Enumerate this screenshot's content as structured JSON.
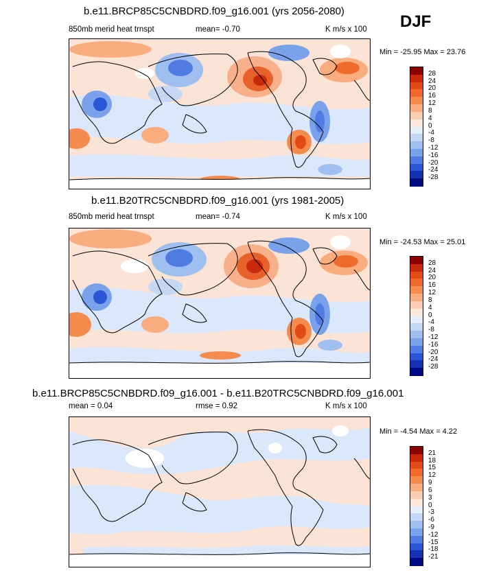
{
  "season": "DJF",
  "panels": [
    {
      "title": "b.e11.BRCP85C5CNBDRD.f09_g16.001 (yrs 2056-2080)",
      "left_label": "850mb merid heat trnspt",
      "center_label": "mean=  -0.70",
      "right_label": "K m/s x 100",
      "minmax": "Min = -25.95 Max =  23.76"
    },
    {
      "title": "b.e11.B20TRC5CNBDRD.f09_g16.001 (yrs 1981-2005)",
      "left_label": "850mb merid heat trnspt",
      "center_label": "mean=  -0.74",
      "right_label": "K m/s x 100",
      "minmax": "Min = -24.53 Max =  25.01"
    },
    {
      "title": "b.e11.BRCP85C5CNBDRD.f09_g16.001 - b.e11.B20TRC5CNBDRD.f09_g16.001",
      "left_label": "mean =   0.04",
      "center_label": "rmse =   0.92",
      "right_label": "K m/s x 100",
      "minmax": "Min =  -4.54 Max =   4.22"
    }
  ],
  "colorbar_abs": {
    "labels": [
      "28",
      "24",
      "20",
      "16",
      "12",
      "8",
      "4",
      "0",
      "-4",
      "-8",
      "-12",
      "-16",
      "-20",
      "-24",
      "-28"
    ],
    "colors": [
      "#8b0000",
      "#c8290a",
      "#e24a16",
      "#f06a2c",
      "#f58c4d",
      "#f9ad7e",
      "#fbcdb0",
      "#fbe7d9",
      "#e4eefb",
      "#c4d8f6",
      "#9ebff0",
      "#7aa2ea",
      "#4f7be3",
      "#2a55d6",
      "#1530b0",
      "#000a80"
    ]
  },
  "colorbar_diff": {
    "labels": [
      "21",
      "18",
      "15",
      "12",
      "9",
      "6",
      "3",
      "0",
      "-3",
      "-6",
      "-9",
      "-12",
      "-15",
      "-18",
      "-21"
    ],
    "colors": [
      "#8b0000",
      "#c8290a",
      "#e24a16",
      "#f06a2c",
      "#f58c4d",
      "#f9ad7e",
      "#fbcdb0",
      "#fbe7d9",
      "#e4eefb",
      "#c4d8f6",
      "#9ebff0",
      "#7aa2ea",
      "#4f7be3",
      "#2a55d6",
      "#1530b0",
      "#000a80"
    ]
  },
  "chart_data": [
    {
      "type": "heatmap",
      "title": "b.e11.BRCP85C5CNBDRD.f09_g16.001 (yrs 2056-2080)",
      "variable": "850mb merid heat trnspt",
      "units": "K m/s x 100",
      "mean": -0.7,
      "min": -25.95,
      "max": 23.76,
      "contour_levels": [
        -28,
        -24,
        -20,
        -16,
        -12,
        -8,
        -4,
        0,
        4,
        8,
        12,
        16,
        20,
        24,
        28
      ]
    },
    {
      "type": "heatmap",
      "title": "b.e11.B20TRC5CNBDRD.f09_g16.001 (yrs 1981-2005)",
      "variable": "850mb merid heat trnspt",
      "units": "K m/s x 100",
      "mean": -0.74,
      "min": -24.53,
      "max": 25.01,
      "contour_levels": [
        -28,
        -24,
        -20,
        -16,
        -12,
        -8,
        -4,
        0,
        4,
        8,
        12,
        16,
        20,
        24,
        28
      ]
    },
    {
      "type": "heatmap",
      "title": "b.e11.BRCP85C5CNBDRD.f09_g16.001 - b.e11.B20TRC5CNBDRD.f09_g16.001",
      "units": "K m/s x 100",
      "mean": 0.04,
      "rmse": 0.92,
      "min": -4.54,
      "max": 4.22,
      "contour_levels": [
        -21,
        -18,
        -15,
        -12,
        -9,
        -6,
        -3,
        0,
        3,
        6,
        9,
        12,
        15,
        18,
        21
      ]
    }
  ]
}
